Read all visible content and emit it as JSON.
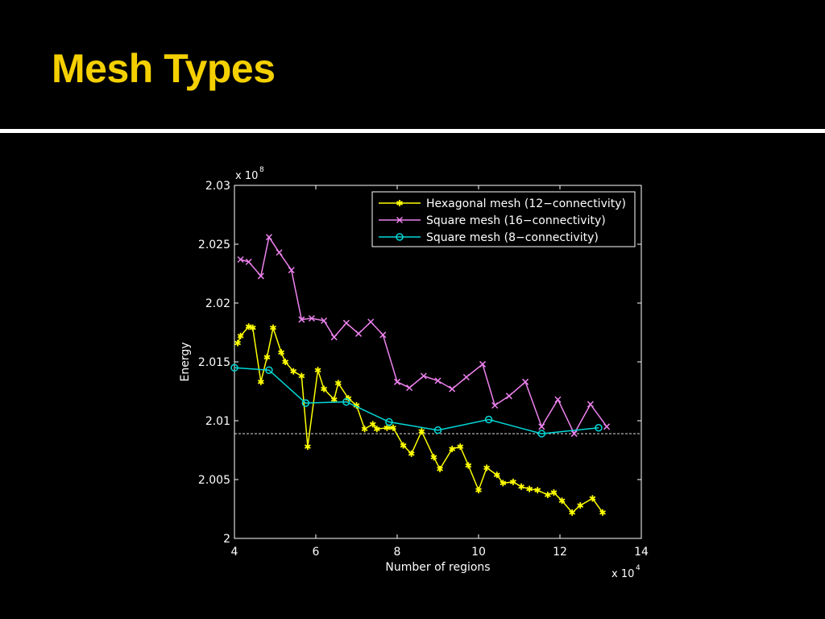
{
  "slide": {
    "title": "Mesh Types",
    "title_color": "#F5D000",
    "divider_color": "#FFFFFF"
  },
  "chart_data": {
    "type": "line",
    "title": "",
    "xlabel": "Number of regions",
    "ylabel": "Energy",
    "x_multiplier": "x 10",
    "x_multiplier_exp": "4",
    "y_multiplier": "x 10",
    "y_multiplier_exp": "8",
    "xlim": [
      4,
      14
    ],
    "ylim": [
      2.0,
      2.03
    ],
    "x_ticks": [
      4,
      6,
      8,
      10,
      12,
      14
    ],
    "x_tick_labels": [
      "4",
      "6",
      "8",
      "10",
      "12",
      "14"
    ],
    "y_ticks": [
      2.0,
      2.005,
      2.01,
      2.015,
      2.02,
      2.025,
      2.03
    ],
    "y_tick_labels": [
      "2",
      "2.005",
      "2.01",
      "2.015",
      "2.02",
      "2.025",
      "2.03"
    ],
    "grid": false,
    "legend_position": "top-right",
    "reference_line": {
      "y": 2.0089,
      "style": "dashed",
      "color": "#FFFFFF"
    },
    "series": [
      {
        "name": "Hexagonal mesh (12−connectivity)",
        "color": "#FFFF00",
        "marker": "asterisk",
        "x": [
          4.08,
          4.15,
          4.35,
          4.45,
          4.65,
          4.8,
          4.95,
          5.15,
          5.25,
          5.45,
          5.65,
          5.8,
          6.05,
          6.2,
          6.45,
          6.55,
          6.8,
          7.0,
          7.2,
          7.4,
          7.5,
          7.75,
          7.9,
          8.15,
          8.35,
          8.6,
          8.9,
          9.05,
          9.35,
          9.55,
          9.75,
          10.0,
          10.2,
          10.45,
          10.6,
          10.85,
          11.05,
          11.25,
          11.45,
          11.7,
          11.85,
          12.05,
          12.3,
          12.5,
          12.8,
          13.05
        ],
        "y": [
          2.0166,
          2.0172,
          2.018,
          2.0179,
          2.0133,
          2.0154,
          2.0179,
          2.0158,
          2.015,
          2.0142,
          2.0138,
          2.0078,
          2.0143,
          2.0127,
          2.0118,
          2.0132,
          2.0119,
          2.0113,
          2.0093,
          2.0097,
          2.0093,
          2.0094,
          2.0094,
          2.0079,
          2.0072,
          2.0091,
          2.0069,
          2.0059,
          2.0076,
          2.0078,
          2.0062,
          2.0041,
          2.006,
          2.0054,
          2.0047,
          2.0048,
          2.0044,
          2.0042,
          2.0041,
          2.0037,
          2.0039,
          2.0032,
          2.0022,
          2.0028,
          2.0034,
          2.0022
        ]
      },
      {
        "name": "Square mesh (16−connectivity)",
        "color": "#EE82EE",
        "marker": "x",
        "x": [
          4.15,
          4.35,
          4.65,
          4.85,
          5.1,
          5.4,
          5.65,
          5.9,
          6.2,
          6.45,
          6.75,
          7.05,
          7.35,
          7.65,
          8.0,
          8.3,
          8.65,
          9.0,
          9.35,
          9.7,
          10.1,
          10.4,
          10.75,
          11.15,
          11.55,
          11.95,
          12.35,
          12.75,
          13.15
        ],
        "y": [
          2.0237,
          2.0235,
          2.0223,
          2.0256,
          2.0243,
          2.0228,
          2.0186,
          2.0187,
          2.0185,
          2.0171,
          2.0183,
          2.0174,
          2.0184,
          2.0173,
          2.0133,
          2.0128,
          2.0138,
          2.0134,
          2.0127,
          2.0137,
          2.0148,
          2.0113,
          2.0121,
          2.0133,
          2.0095,
          2.0118,
          2.0089,
          2.0114,
          2.0095
        ]
      },
      {
        "name": "Square mesh (8−connectivity)",
        "color": "#00D8D8",
        "marker": "circle",
        "x": [
          4.0,
          4.85,
          5.75,
          6.75,
          7.8,
          9.0,
          10.25,
          11.55,
          12.95
        ],
        "y": [
          2.0145,
          2.0143,
          2.0115,
          2.0116,
          2.0099,
          2.0092,
          2.0101,
          2.0089,
          2.0094
        ]
      }
    ]
  }
}
